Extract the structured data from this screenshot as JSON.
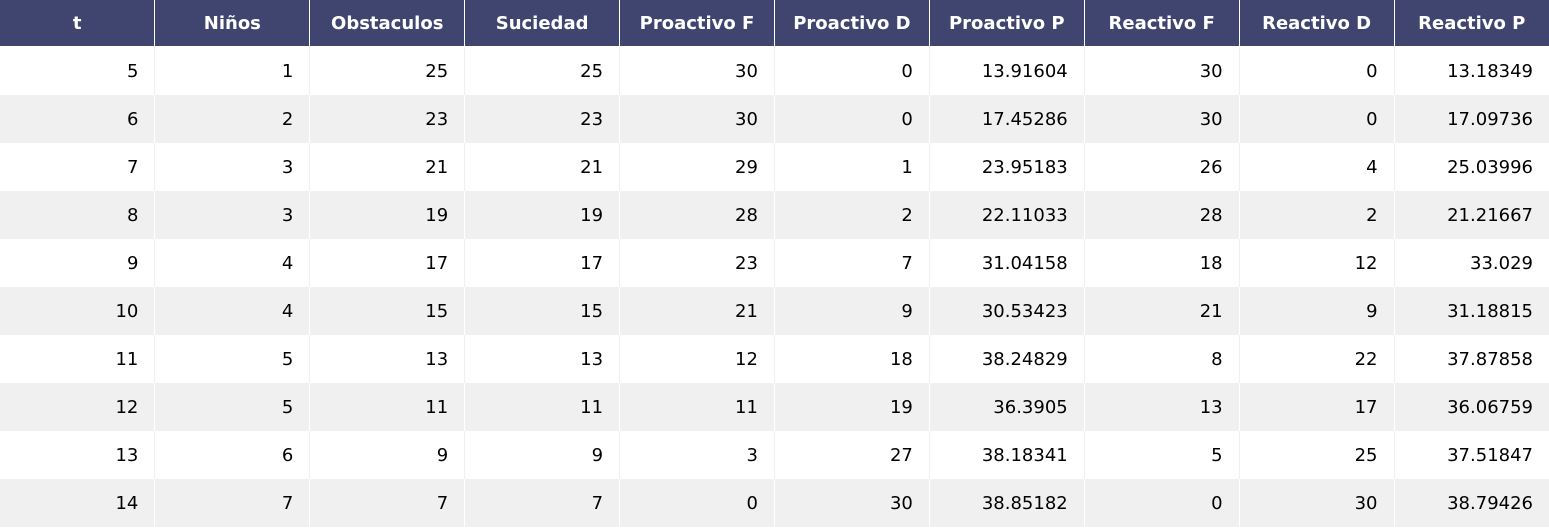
{
  "table": {
    "columns": [
      "t",
      "Niños",
      "Obstaculos",
      "Suciedad",
      "Proactivo F",
      "Proactivo D",
      "Proactivo P",
      "Reactivo F",
      "Reactivo D",
      "Reactivo P"
    ],
    "rows": [
      [
        "5",
        "1",
        "25",
        "25",
        "30",
        "0",
        "13.91604",
        "30",
        "0",
        "13.18349"
      ],
      [
        "6",
        "2",
        "23",
        "23",
        "30",
        "0",
        "17.45286",
        "30",
        "0",
        "17.09736"
      ],
      [
        "7",
        "3",
        "21",
        "21",
        "29",
        "1",
        "23.95183",
        "26",
        "4",
        "25.03996"
      ],
      [
        "8",
        "3",
        "19",
        "19",
        "28",
        "2",
        "22.11033",
        "28",
        "2",
        "21.21667"
      ],
      [
        "9",
        "4",
        "17",
        "17",
        "23",
        "7",
        "31.04158",
        "18",
        "12",
        "33.029"
      ],
      [
        "10",
        "4",
        "15",
        "15",
        "21",
        "9",
        "30.53423",
        "21",
        "9",
        "31.18815"
      ],
      [
        "11",
        "5",
        "13",
        "13",
        "12",
        "18",
        "38.24829",
        "8",
        "22",
        "37.87858"
      ],
      [
        "12",
        "5",
        "11",
        "11",
        "11",
        "19",
        "36.3905",
        "13",
        "17",
        "36.06759"
      ],
      [
        "13",
        "6",
        "9",
        "9",
        "3",
        "27",
        "38.18341",
        "5",
        "25",
        "37.51847"
      ],
      [
        "14",
        "7",
        "7",
        "7",
        "0",
        "30",
        "38.85182",
        "0",
        "30",
        "38.79426"
      ]
    ]
  },
  "colors": {
    "header_bg": "#404570",
    "header_text": "#ffffff",
    "row_alt_bg": "#f0f0f0",
    "row_bg": "#ffffff"
  }
}
